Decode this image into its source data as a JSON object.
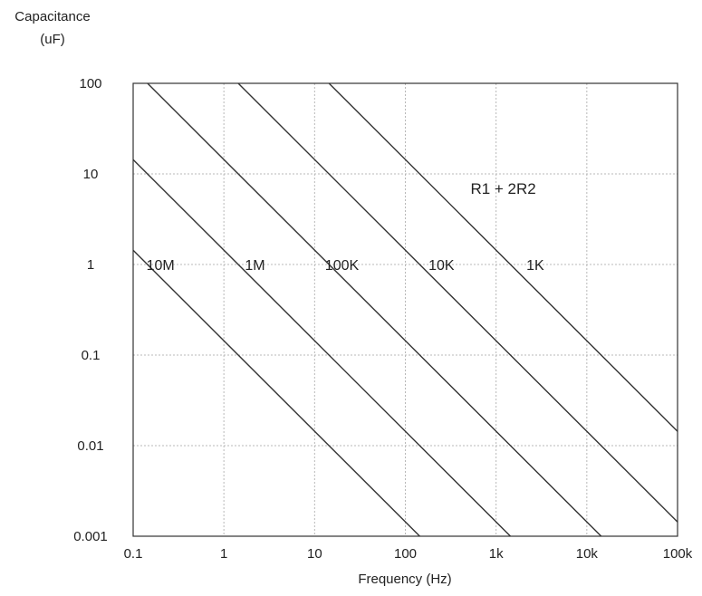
{
  "chart_data": {
    "type": "line",
    "title": "",
    "xlabel": "Frequency (Hz)",
    "ylabel": "Capacitance",
    "ylabel_unit": "(uF)",
    "x_scale": "log",
    "y_scale": "log",
    "xlim": [
      0.1,
      100000
    ],
    "ylim": [
      0.001,
      100
    ],
    "grid": true,
    "x_ticks": [
      {
        "value": 0.1,
        "label": "0.1"
      },
      {
        "value": 1,
        "label": "1"
      },
      {
        "value": 10,
        "label": "10"
      },
      {
        "value": 100,
        "label": "100"
      },
      {
        "value": 1000,
        "label": "1k"
      },
      {
        "value": 10000,
        "label": "10k"
      },
      {
        "value": 100000,
        "label": "100k"
      }
    ],
    "y_ticks": [
      {
        "value": 0.001,
        "label": "0.001"
      },
      {
        "value": 0.01,
        "label": "0.01"
      },
      {
        "value": 0.1,
        "label": "0.1"
      },
      {
        "value": 1,
        "label": "1"
      },
      {
        "value": 10,
        "label": "10"
      },
      {
        "value": 100,
        "label": "100"
      }
    ],
    "series": [
      {
        "name": "10M",
        "points": [
          {
            "x": 0.1,
            "y": 1.44
          },
          {
            "x": 144,
            "y": 0.001
          }
        ]
      },
      {
        "name": "1M",
        "points": [
          {
            "x": 0.1,
            "y": 14.4
          },
          {
            "x": 1440,
            "y": 0.001
          }
        ]
      },
      {
        "name": "100K",
        "points": [
          {
            "x": 0.144,
            "y": 100
          },
          {
            "x": 14400,
            "y": 0.001
          }
        ]
      },
      {
        "name": "10K",
        "points": [
          {
            "x": 1.44,
            "y": 100
          },
          {
            "x": 100000,
            "y": 0.00144
          }
        ]
      },
      {
        "name": "1K",
        "points": [
          {
            "x": 14.4,
            "y": 100
          },
          {
            "x": 100000,
            "y": 0.0144
          }
        ]
      }
    ],
    "series_labels": [
      {
        "text": "10M",
        "x": 0.2,
        "y": 1
      },
      {
        "text": "1M",
        "x": 2.2,
        "y": 1
      },
      {
        "text": "100K",
        "x": 20,
        "y": 1
      },
      {
        "text": "10K",
        "x": 250,
        "y": 1
      },
      {
        "text": "1K",
        "x": 2700,
        "y": 1
      }
    ],
    "annotations": [
      {
        "text": "R1 + 2R2",
        "x": 1200,
        "y": 6
      }
    ]
  }
}
